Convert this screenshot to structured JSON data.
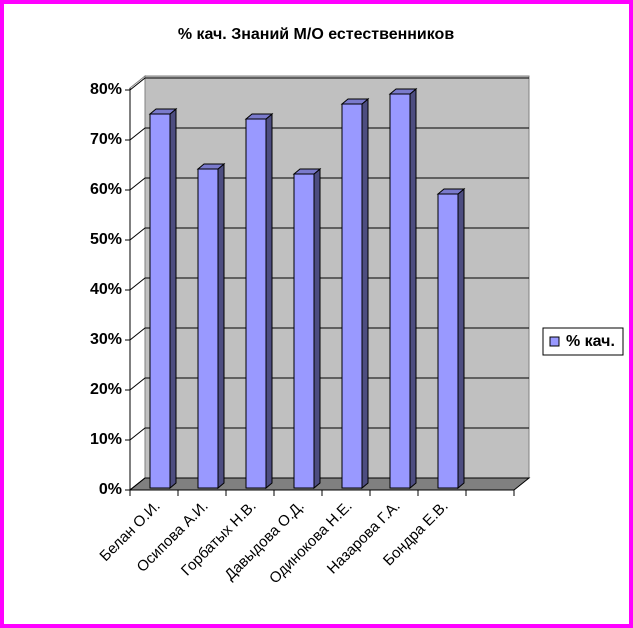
{
  "chart_data": {
    "type": "bar",
    "title": "% кач. Знаний М/О естественников",
    "categories": [
      "Белан О.И.",
      "Осипова А.И.",
      "Горбатых Н.В.",
      "Давыдова О.Д.",
      "Одинокова Н.Е.",
      "Назарова Г.А.",
      "Бондра Е.В.",
      null
    ],
    "series": [
      {
        "name": "% кач.",
        "color": "#9999ff",
        "values": [
          76,
          65,
          75,
          64,
          78,
          80,
          60,
          null
        ]
      }
    ],
    "ylim": [
      0,
      80
    ],
    "yticks": [
      {
        "value": 0,
        "label": "0%"
      },
      {
        "value": 10,
        "label": "10%"
      },
      {
        "value": 20,
        "label": "20%"
      },
      {
        "value": 30,
        "label": "30%"
      },
      {
        "value": 40,
        "label": "40%"
      },
      {
        "value": 50,
        "label": "50%"
      },
      {
        "value": 60,
        "label": "60%"
      },
      {
        "value": 70,
        "label": "70%"
      },
      {
        "value": 80,
        "label": "80%"
      }
    ],
    "grid": true,
    "legend": "right"
  }
}
